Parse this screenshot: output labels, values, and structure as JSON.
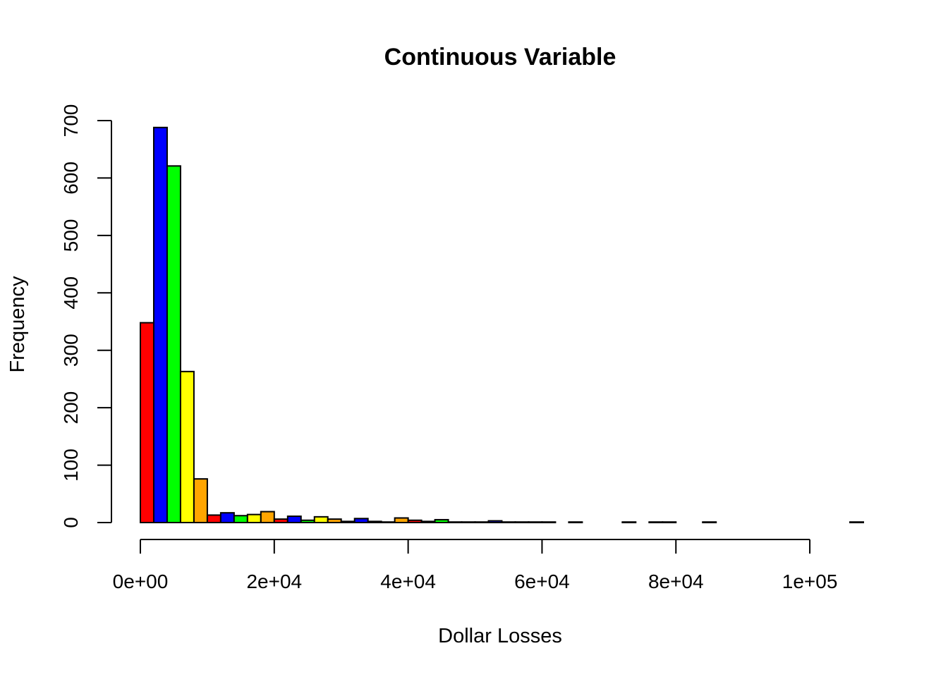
{
  "chart_data": {
    "type": "bar",
    "title": "Continuous Variable",
    "xlabel": "Dollar Losses",
    "ylabel": "Frequency",
    "xlim": [
      0,
      108000
    ],
    "ylim": [
      0,
      700
    ],
    "bin_width": 2000,
    "x_ticks": [
      0,
      20000,
      40000,
      60000,
      80000,
      100000
    ],
    "x_tick_labels": [
      "0e+00",
      "2e+04",
      "4e+04",
      "6e+04",
      "8e+04",
      "1e+05"
    ],
    "y_ticks": [
      0,
      100,
      200,
      300,
      400,
      500,
      600,
      700
    ],
    "y_tick_labels": [
      "0",
      "100",
      "200",
      "300",
      "400",
      "500",
      "600",
      "700"
    ],
    "bar_colors": [
      "#ff0000",
      "#0000ff",
      "#00ff00",
      "#ffff00",
      "#ffa500"
    ],
    "bins_start": [
      0,
      2000,
      4000,
      6000,
      8000,
      10000,
      12000,
      14000,
      16000,
      18000,
      20000,
      22000,
      24000,
      26000,
      28000,
      30000,
      32000,
      34000,
      36000,
      38000,
      40000,
      42000,
      44000,
      46000,
      48000,
      50000,
      52000,
      54000,
      56000,
      58000,
      60000,
      62000,
      64000,
      66000,
      68000,
      70000,
      72000,
      74000,
      76000,
      78000,
      80000,
      82000,
      84000,
      86000,
      88000,
      90000,
      92000,
      94000,
      96000,
      98000,
      100000,
      102000,
      104000,
      106000
    ],
    "values": [
      348,
      688,
      621,
      263,
      76,
      13,
      17,
      12,
      14,
      19,
      6,
      11,
      4,
      10,
      6,
      2,
      7,
      2,
      1,
      8,
      4,
      2,
      5,
      1,
      1,
      1,
      3,
      1,
      1,
      1,
      1,
      0,
      1,
      0,
      0,
      0,
      1,
      0,
      1,
      1,
      0,
      0,
      1,
      0,
      0,
      0,
      0,
      0,
      0,
      0,
      0,
      0,
      0,
      1
    ],
    "grid": false,
    "legend": "none"
  }
}
